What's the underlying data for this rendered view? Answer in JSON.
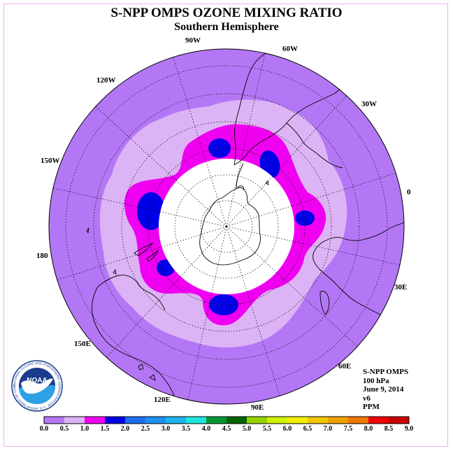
{
  "header": {
    "title": "S-NPP OMPS OZONE MIXING RATIO",
    "subtitle": "Southern Hemisphere"
  },
  "map": {
    "projection": "south polar stereographic",
    "center": "South Pole",
    "longitude_labels": [
      "90W",
      "60W",
      "30W",
      "0",
      "30E",
      "60E",
      "90E",
      "120E",
      "150E",
      "180",
      "150W",
      "120W"
    ],
    "colors": {
      "field_background": "#b377f5",
      "band_light": "#dcb4f5",
      "band_magenta": "#f000f0",
      "band_blue": "#0000e6",
      "inner_disk": "#ffffff",
      "coast": "#000000"
    }
  },
  "info": {
    "product": "S-NPP OMPS",
    "level": "100 hPa",
    "date": "June 9, 2014",
    "version": "v6",
    "units": "PPM"
  },
  "colorbar": {
    "ticks": [
      "0.0",
      "0.5",
      "1.0",
      "1.5",
      "2.0",
      "2.5",
      "3.0",
      "3.5",
      "4.0",
      "4.5",
      "5.0",
      "5.5",
      "6.0",
      "6.5",
      "7.0",
      "7.5",
      "8.0",
      "8.5",
      "9.0"
    ],
    "colors": [
      "#b377f5",
      "#dcb4f5",
      "#f000f0",
      "#0000e6",
      "#1e6ef0",
      "#1e90f0",
      "#1eb4f0",
      "#1ee6dc",
      "#009632",
      "#006400",
      "#96d200",
      "#d2f000",
      "#f0f000",
      "#f0c800",
      "#f0a000",
      "#f07800",
      "#f00000",
      "#c80000",
      "#8b5a32"
    ]
  },
  "logo": {
    "text": "NOAA",
    "ring_text": "NATIONAL OCEANIC AND ATMOSPHERIC ADMINISTRATION · U.S. DEPARTMENT OF COMMERCE"
  }
}
